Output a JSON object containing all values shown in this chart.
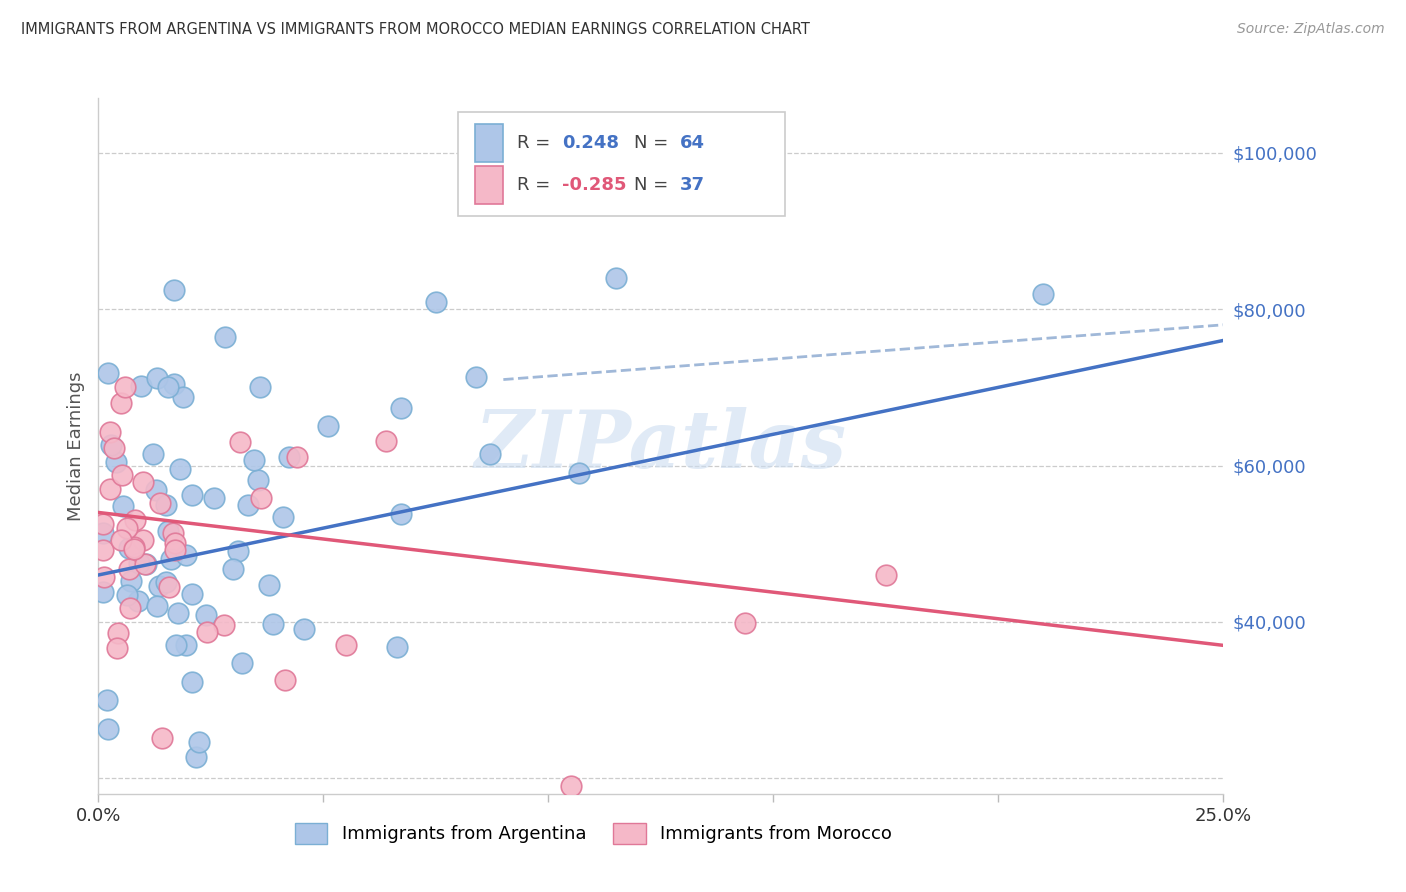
{
  "title": "IMMIGRANTS FROM ARGENTINA VS IMMIGRANTS FROM MOROCCO MEDIAN EARNINGS CORRELATION CHART",
  "source": "Source: ZipAtlas.com",
  "ylabel": "Median Earnings",
  "xlim": [
    0.0,
    0.25
  ],
  "ylim": [
    18000,
    107000
  ],
  "argentina_color": "#aec6e8",
  "argentina_edge": "#7bafd4",
  "morocco_color": "#f5b8c8",
  "morocco_edge": "#e07898",
  "trend_argentina_color": "#4472c4",
  "trend_morocco_color": "#e05878",
  "dashed_color": "#a0b8d8",
  "watermark_color": "#ccddf0",
  "R_argentina": 0.248,
  "N_argentina": 64,
  "R_morocco": -0.285,
  "N_morocco": 37,
  "legend_text_color": "#333333",
  "legend_value_color": "#4472c4",
  "yaxis_label_color": "#4472c4",
  "title_color": "#333333",
  "source_color": "#999999"
}
